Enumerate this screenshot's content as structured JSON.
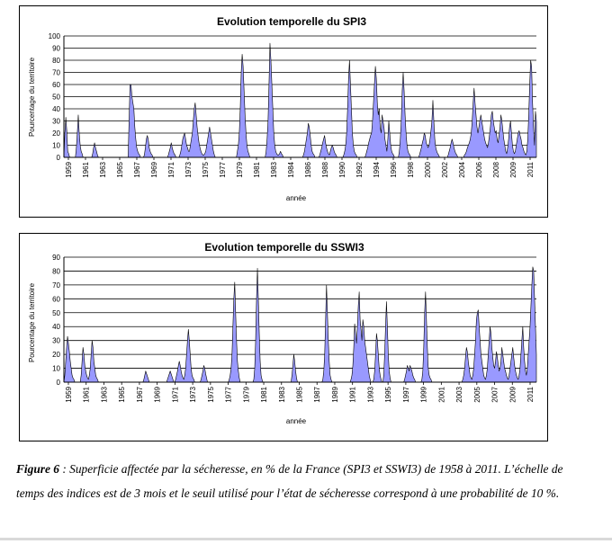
{
  "chart_data": [
    {
      "type": "area",
      "title": "Evolution temporelle du SPI3",
      "xlabel": "année",
      "ylabel": "Pourcentage du territoire",
      "ylim": [
        0,
        100
      ],
      "yticks": [
        "0",
        "10",
        "20",
        "30",
        "40",
        "50",
        "60",
        "70",
        "80",
        "90",
        "100"
      ],
      "xtick_labels": [
        "1959",
        "1961",
        "1963",
        "1965",
        "1967",
        "1969",
        "1971",
        "1973",
        "1975",
        "1977",
        "1979",
        "1981",
        "1983",
        "1984",
        "1986",
        "1988",
        "1990",
        "1992",
        "1994",
        "1996",
        "1998",
        "2000",
        "2002",
        "2004",
        "2006",
        "2008",
        "2009",
        "2011"
      ],
      "grid": "horizontal",
      "series_color": "#9999ff",
      "series": [
        {
          "values": [
            0,
            20,
            33,
            22,
            5,
            3,
            0,
            0,
            0,
            0,
            0,
            0,
            0,
            8,
            20,
            35,
            20,
            10,
            5,
            3,
            0,
            0,
            0,
            0,
            0,
            0,
            0,
            0,
            0,
            0,
            3,
            8,
            12,
            8,
            5,
            2,
            0,
            0,
            0,
            0,
            0,
            0,
            0,
            0,
            0,
            0,
            0,
            0,
            0,
            0,
            0,
            0,
            0,
            0,
            0,
            0,
            0,
            0,
            0,
            0,
            0,
            0,
            0,
            0,
            0,
            0,
            0,
            0,
            30,
            60,
            60,
            50,
            45,
            40,
            25,
            15,
            8,
            5,
            3,
            2,
            0,
            0,
            0,
            0,
            2,
            8,
            15,
            18,
            15,
            8,
            5,
            3,
            2,
            0,
            0,
            0,
            0,
            0,
            0,
            0,
            0,
            0,
            0,
            0,
            0,
            0,
            0,
            0,
            0,
            2,
            5,
            8,
            12,
            8,
            5,
            3,
            2,
            0,
            0,
            0,
            0,
            2,
            5,
            10,
            15,
            18,
            20,
            15,
            10,
            8,
            5,
            5,
            10,
            15,
            20,
            30,
            40,
            45,
            35,
            25,
            18,
            12,
            8,
            5,
            3,
            2,
            2,
            3,
            5,
            10,
            15,
            20,
            25,
            20,
            15,
            10,
            5,
            2,
            0,
            0,
            0,
            0,
            0,
            0,
            0,
            0,
            0,
            0,
            0,
            0,
            0,
            0,
            0,
            0,
            0,
            0,
            0,
            0,
            0,
            0,
            0,
            5,
            10,
            20,
            40,
            70,
            85,
            75,
            55,
            35,
            20,
            10,
            5,
            3,
            0,
            0,
            0,
            0,
            0,
            0,
            0,
            0,
            0,
            0,
            0,
            0,
            0,
            0,
            0,
            0,
            0,
            5,
            15,
            30,
            60,
            94,
            80,
            60,
            40,
            20,
            10,
            5,
            3,
            2,
            2,
            3,
            5,
            3,
            2,
            0,
            0,
            0,
            0,
            0,
            0,
            0,
            0,
            0,
            0,
            0,
            0,
            0,
            0,
            0,
            0,
            0,
            0,
            0,
            0,
            0,
            2,
            5,
            10,
            15,
            20,
            28,
            25,
            18,
            10,
            5,
            3,
            2,
            0,
            0,
            0,
            0,
            0,
            2,
            5,
            8,
            12,
            15,
            18,
            12,
            8,
            5,
            3,
            2,
            5,
            8,
            10,
            8,
            5,
            3,
            2,
            0,
            0,
            0,
            0,
            0,
            0,
            0,
            2,
            5,
            10,
            20,
            40,
            65,
            80,
            60,
            40,
            20,
            10,
            5,
            3,
            2,
            0,
            0,
            0,
            0,
            0,
            0,
            0,
            0,
            0,
            2,
            5,
            8,
            12,
            15,
            18,
            20,
            30,
            45,
            60,
            75,
            65,
            45,
            35,
            40,
            25,
            20,
            35,
            30,
            25,
            15,
            10,
            5,
            15,
            30,
            20,
            10,
            5,
            3,
            2,
            0,
            0,
            0,
            0,
            0,
            5,
            15,
            30,
            55,
            70,
            55,
            35,
            20,
            10,
            5,
            3,
            2,
            0,
            0,
            0,
            0,
            0,
            0,
            0,
            0,
            0,
            2,
            5,
            8,
            12,
            15,
            20,
            18,
            12,
            10,
            8,
            10,
            15,
            22,
            30,
            47,
            30,
            15,
            8,
            5,
            3,
            2,
            0,
            0,
            0,
            0,
            0,
            0,
            0,
            0,
            0,
            2,
            5,
            8,
            12,
            15,
            12,
            8,
            5,
            3,
            2,
            0,
            0,
            0,
            0,
            0,
            0,
            0,
            2,
            3,
            5,
            8,
            10,
            12,
            15,
            20,
            30,
            45,
            57,
            45,
            35,
            25,
            20,
            25,
            30,
            35,
            30,
            25,
            20,
            15,
            12,
            10,
            8,
            12,
            18,
            25,
            35,
            38,
            30,
            25,
            20,
            22,
            15,
            12,
            18,
            25,
            35,
            30,
            22,
            15,
            10,
            5,
            3,
            8,
            15,
            25,
            30,
            20,
            10,
            5,
            3,
            5,
            10,
            15,
            20,
            22,
            18,
            15,
            10,
            8,
            5,
            3,
            2,
            5,
            15,
            35,
            60,
            80,
            75,
            45,
            25,
            10,
            38,
            30
          ]
        }
      ]
    },
    {
      "type": "area",
      "title": "Evolution temporelle du SSWI3",
      "xlabel": "année",
      "ylabel": "Pourcentage du territoire",
      "ylim": [
        0,
        90
      ],
      "yticks": [
        "0",
        "10",
        "20",
        "30",
        "40",
        "50",
        "60",
        "70",
        "80",
        "90"
      ],
      "xtick_labels": [
        "1959",
        "1961",
        "1963",
        "1965",
        "1967",
        "1969",
        "1971",
        "1973",
        "1975",
        "1977",
        "1979",
        "1981",
        "1983",
        "1985",
        "1987",
        "1989",
        "1991",
        "1993",
        "1995",
        "1997",
        "1999",
        "2001",
        "2003",
        "2005",
        "2007",
        "2009",
        "2011"
      ],
      "grid": "horizontal",
      "series_color": "#9999ff",
      "series": [
        {
          "values": [
            0,
            5,
            15,
            25,
            33,
            28,
            22,
            15,
            10,
            5,
            3,
            2,
            0,
            0,
            0,
            0,
            0,
            0,
            0,
            5,
            15,
            25,
            20,
            12,
            8,
            5,
            3,
            2,
            5,
            10,
            20,
            30,
            25,
            15,
            10,
            5,
            3,
            2,
            0,
            0,
            0,
            0,
            0,
            0,
            0,
            0,
            0,
            0,
            0,
            0,
            0,
            0,
            0,
            0,
            0,
            0,
            0,
            0,
            0,
            0,
            0,
            0,
            0,
            0,
            0,
            0,
            0,
            0,
            0,
            0,
            0,
            0,
            0,
            0,
            0,
            0,
            0,
            0,
            0,
            0,
            0,
            0,
            0,
            0,
            0,
            0,
            0,
            0,
            2,
            5,
            8,
            6,
            4,
            2,
            0,
            0,
            0,
            0,
            0,
            0,
            0,
            0,
            0,
            0,
            0,
            0,
            0,
            0,
            0,
            0,
            0,
            0,
            0,
            0,
            2,
            4,
            6,
            8,
            6,
            4,
            2,
            0,
            0,
            2,
            5,
            8,
            12,
            15,
            12,
            8,
            5,
            3,
            2,
            5,
            10,
            20,
            30,
            38,
            30,
            20,
            10,
            5,
            3,
            2,
            0,
            0,
            0,
            0,
            0,
            0,
            0,
            2,
            5,
            8,
            12,
            10,
            6,
            3,
            0,
            0,
            0,
            0,
            0,
            0,
            0,
            0,
            0,
            0,
            0,
            0,
            0,
            0,
            0,
            0,
            0,
            0,
            0,
            0,
            0,
            0,
            0,
            0,
            2,
            5,
            10,
            20,
            40,
            60,
            72,
            50,
            30,
            15,
            8,
            3,
            0,
            0,
            0,
            0,
            0,
            0,
            0,
            0,
            0,
            0,
            0,
            0,
            0,
            0,
            0,
            2,
            10,
            30,
            60,
            82,
            60,
            35,
            15,
            5,
            2,
            0,
            0,
            0,
            0,
            0,
            0,
            0,
            0,
            0,
            0,
            0,
            0,
            0,
            0,
            0,
            0,
            0,
            0,
            0,
            0,
            0,
            0,
            0,
            0,
            0,
            0,
            0,
            0,
            0,
            0,
            0,
            0,
            5,
            12,
            20,
            15,
            8,
            3,
            0,
            0,
            0,
            0,
            0,
            0,
            0,
            0,
            0,
            0,
            0,
            0,
            0,
            0,
            0,
            0,
            0,
            0,
            0,
            0,
            0,
            0,
            0,
            0,
            0,
            0,
            0,
            0,
            2,
            8,
            20,
            45,
            70,
            50,
            30,
            15,
            5,
            2,
            0,
            0,
            0,
            0,
            0,
            0,
            0,
            0,
            0,
            0,
            0,
            0,
            0,
            0,
            0,
            0,
            0,
            0,
            0,
            0,
            0,
            2,
            5,
            12,
            25,
            42,
            35,
            28,
            40,
            55,
            65,
            45,
            38,
            30,
            45,
            40,
            30,
            25,
            20,
            15,
            10,
            5,
            2,
            0,
            0,
            0,
            2,
            8,
            20,
            35,
            30,
            20,
            10,
            5,
            2,
            0,
            0,
            5,
            20,
            40,
            58,
            40,
            20,
            8,
            3,
            0,
            0,
            0,
            0,
            0,
            0,
            0,
            0,
            0,
            0,
            0,
            0,
            0,
            0,
            0,
            2,
            5,
            8,
            12,
            10,
            8,
            12,
            10,
            8,
            5,
            3,
            2,
            0,
            0,
            0,
            0,
            0,
            0,
            0,
            2,
            8,
            25,
            50,
            65,
            45,
            25,
            10,
            5,
            3,
            2,
            0,
            0,
            0,
            0,
            0,
            0,
            0,
            0,
            0,
            0,
            0,
            0,
            0,
            0,
            0,
            0,
            0,
            0,
            0,
            0,
            0,
            0,
            0,
            0,
            0,
            0,
            0,
            0,
            0,
            0,
            0,
            0,
            0,
            0,
            2,
            5,
            10,
            18,
            25,
            22,
            15,
            10,
            5,
            3,
            2,
            5,
            10,
            20,
            30,
            45,
            50,
            52,
            40,
            30,
            20,
            15,
            10,
            5,
            3,
            2,
            5,
            10,
            20,
            30,
            40,
            35,
            25,
            18,
            12,
            10,
            15,
            22,
            18,
            12,
            8,
            10,
            15,
            25,
            20,
            15,
            10,
            8,
            5,
            3,
            2,
            5,
            10,
            15,
            20,
            25,
            18,
            12,
            8,
            5,
            3,
            2,
            5,
            10,
            20,
            30,
            40,
            25,
            15,
            8,
            5,
            10,
            20,
            30,
            40,
            55,
            70,
            83,
            80,
            60,
            40,
            20
          ]
        }
      ]
    }
  ],
  "caption": {
    "figure_label": "Figure 6",
    "text": " : Superficie affectée par la sécheresse, en % de la France (SPI3 et SSWI3) de 1958 à 2011. L’échelle de temps des indices est de 3 mois et le seuil utilisé pour l’état de sécheresse correspond à une probabilité de 10 %."
  }
}
